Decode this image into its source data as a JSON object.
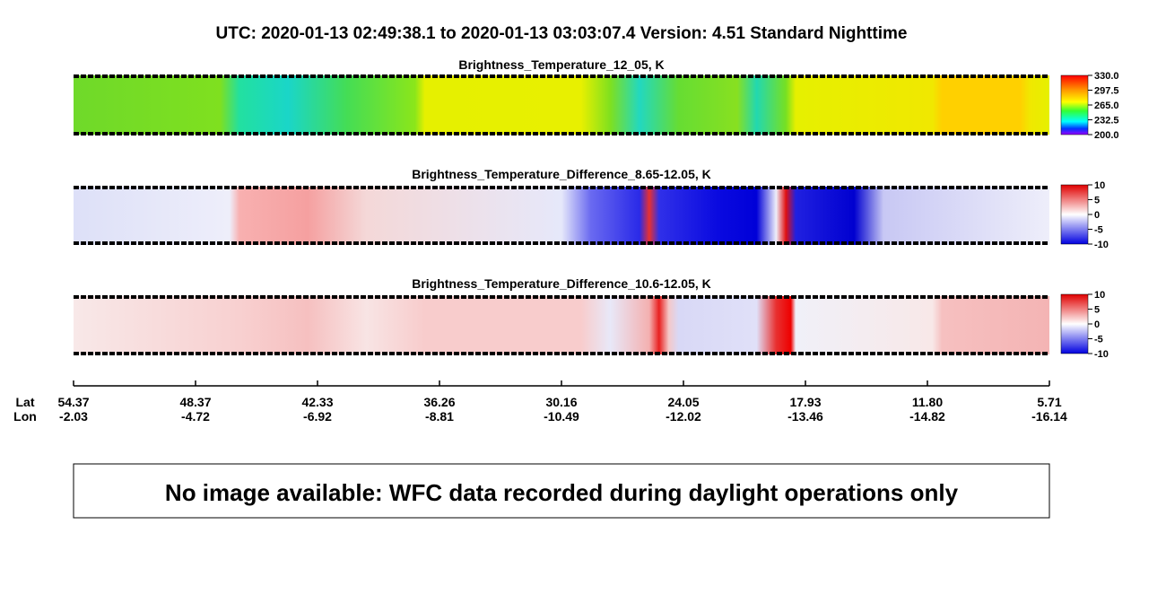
{
  "header": {
    "title": "UTC:  2020-01-13   02:49:38.1  to  2020-01-13   03:03:07.4    Version: 4.51  Standard Nighttime"
  },
  "panels": [
    {
      "title": "Brightness_Temperature_12_05, K",
      "colorbar_ticks": [
        {
          "value": 330,
          "label": "330.0"
        },
        {
          "value": 297.5,
          "label": "297.5"
        },
        {
          "value": 265,
          "label": "265.0"
        },
        {
          "value": 232.5,
          "label": "232.5"
        },
        {
          "value": 200,
          "label": "200.0"
        }
      ]
    },
    {
      "title": "Brightness_Temperature_Difference_8.65-12.05, K",
      "colorbar_ticks": [
        10,
        5,
        0,
        -5,
        -10
      ]
    },
    {
      "title": "Brightness_Temperature_Difference_10.6-12.05, K",
      "colorbar_ticks": [
        10,
        5,
        0,
        -5,
        -10
      ]
    }
  ],
  "axis": {
    "lat_label": "Lat",
    "lon_label": "Lon",
    "lat": [
      "54.37",
      "48.37",
      "42.33",
      "36.26",
      "30.16",
      "24.05",
      "17.93",
      "11.80",
      "5.71"
    ],
    "lon": [
      "-2.03",
      "-4.72",
      "-6.92",
      "-8.81",
      "-10.49",
      "-12.02",
      "-13.46",
      "-14.82",
      "-16.14"
    ]
  },
  "notice": "No image available: WFC data recorded during daylight operations only"
}
